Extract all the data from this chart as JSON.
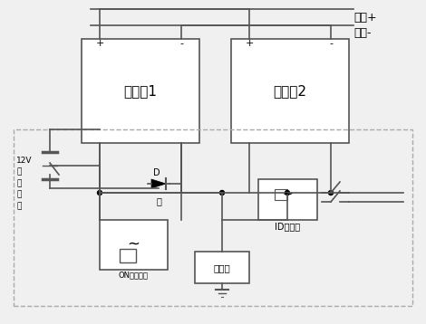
{
  "bg_color": "#f0f0f0",
  "line_color": "#555555",
  "box_color": "#ffffff",
  "dashed_box_color": "#aaaaaa",
  "title_gaoya_plus": "高压+",
  "title_gaoya_minus": "高压-",
  "battery1_label": "电池包1",
  "battery2_label": "电池包2",
  "label_12v": "12V\n钥\n起\n开\n关",
  "label_on_relay": "ON档继电器",
  "label_charger": "充电机",
  "label_id": "ID识别器",
  "plus_sign": "+",
  "minus_sign": "-"
}
